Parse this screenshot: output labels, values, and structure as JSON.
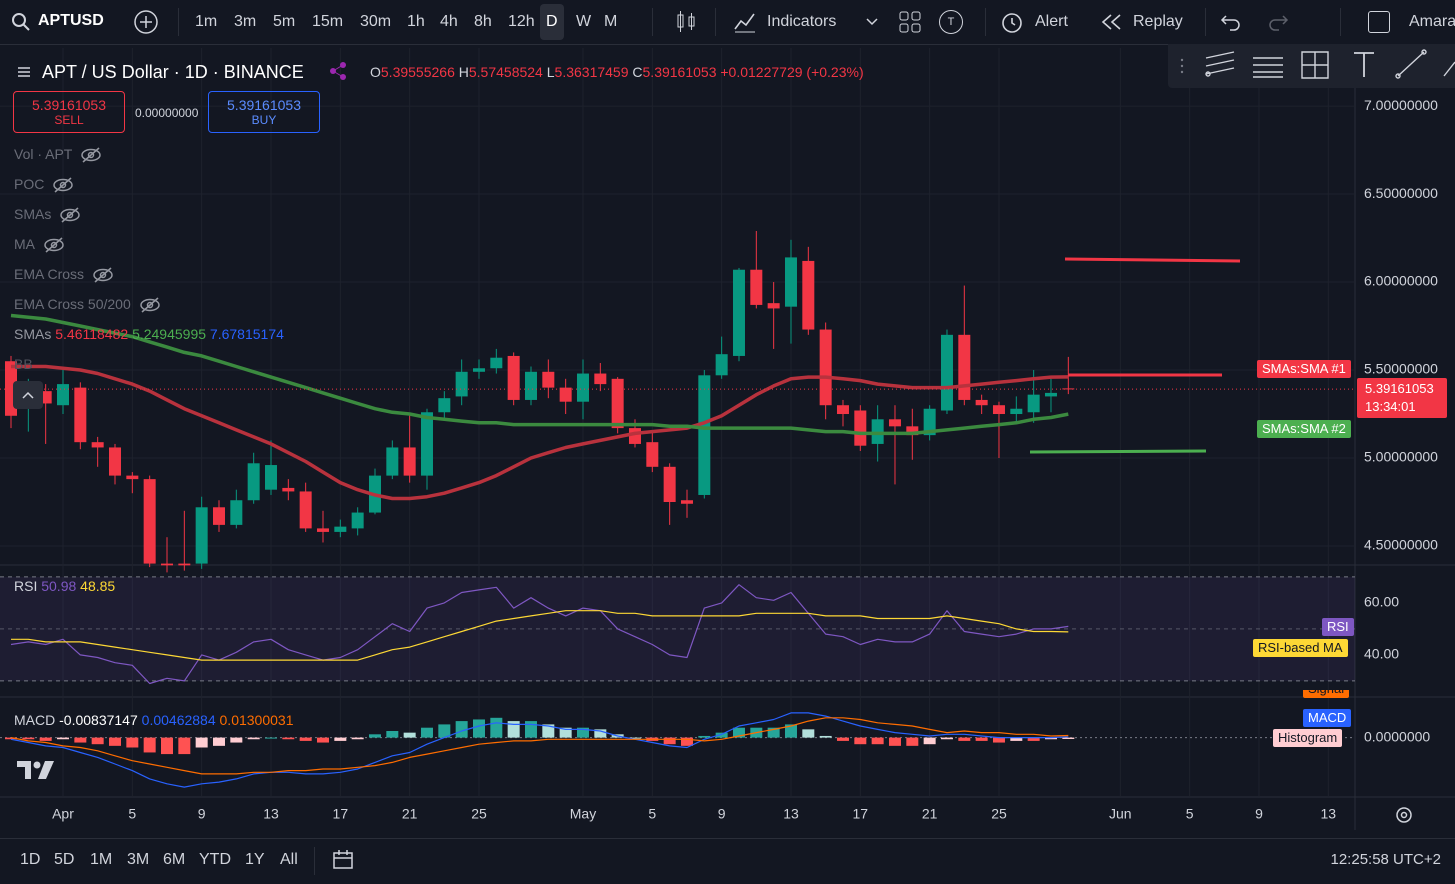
{
  "toolbar": {
    "symbol": "APTUSD",
    "intervals": [
      "1m",
      "3m",
      "5m",
      "15m",
      "30m",
      "1h",
      "4h",
      "8h",
      "12h",
      "D",
      "W",
      "M"
    ],
    "indicators": "Indicators",
    "template": "T",
    "alert": "Alert",
    "replay": "Replay",
    "user": "Amara"
  },
  "header": {
    "title": "APT / US Dollar · 1D · BINANCE",
    "ohlc_labels": [
      "O",
      "H",
      "L",
      "C"
    ],
    "change": "+0.01227729 (+0.23%)"
  },
  "trade": {
    "sell": "SELL",
    "spread": "0.00000000",
    "buy": "BUY"
  },
  "indicator_list": [
    "Vol · APT",
    "POC",
    "SMAs",
    "MA",
    "EMA Cross",
    "EMA Cross 50/200"
  ],
  "sma_legend": {
    "label": "SMAs",
    "third": "7.67815174"
  },
  "bb": "BB",
  "countdown": "13:34:01",
  "bottom": {
    "ranges": [
      "1D",
      "5D",
      "1M",
      "3M",
      "6M",
      "YTD",
      "1Y",
      "All"
    ],
    "clock": "12:25:58 UTC+2"
  },
  "chart_data": [
    {
      "type": "candlestick",
      "x": [
        "Mar 29",
        "Mar 30",
        "Mar 31",
        "Apr 1",
        "Apr 2",
        "Apr 3",
        "Apr 4",
        "Apr 5",
        "Apr 6",
        "Apr 7",
        "Apr 8",
        "Apr 9",
        "Apr 10",
        "Apr 11",
        "Apr 12",
        "Apr 13",
        "Apr 14",
        "Apr 15",
        "Apr 16",
        "Apr 17",
        "Apr 18",
        "Apr 19",
        "Apr 20",
        "Apr 21",
        "Apr 22",
        "Apr 23",
        "Apr 24",
        "Apr 25",
        "Apr 26",
        "Apr 27",
        "Apr 28",
        "Apr 29",
        "Apr 30",
        "May 1",
        "May 2",
        "May 3",
        "May 4",
        "May 5",
        "May 6",
        "May 7",
        "May 8",
        "May 9",
        "May 10",
        "May 11",
        "May 12",
        "May 13",
        "May 14",
        "May 15",
        "May 16",
        "May 17",
        "May 18",
        "May 19",
        "May 20",
        "May 21",
        "May 22",
        "May 23",
        "May 24",
        "May 25",
        "May 26",
        "May 27",
        "May 28",
        "May 29",
        "May 30",
        "May 31",
        "Jun 1",
        "Jun 2",
        "Jun 3",
        "Jun 4",
        "Jun 5",
        "Jun 6",
        "Jun 7",
        "Jun 8",
        "Jun 9",
        "Jun 10",
        "Jun 11",
        "Jun 12",
        "Jun 13"
      ],
      "open": [
        5.55,
        5.3,
        5.38,
        5.3,
        5.4,
        5.09,
        5.06,
        4.9,
        4.88,
        4.4,
        4.4,
        4.4,
        4.72,
        4.62,
        4.76,
        4.82,
        4.83,
        4.81,
        4.6,
        4.58,
        4.6,
        4.69,
        4.9,
        5.06,
        4.9,
        5.26,
        5.35,
        5.49,
        5.51,
        5.58,
        5.33,
        5.49,
        5.4,
        5.32,
        5.48,
        5.45,
        5.17,
        5.09,
        4.95,
        4.76,
        4.79,
        5.47,
        5.58,
        6.07,
        5.88,
        5.86,
        6.12,
        5.73,
        5.3,
        5.27,
        5.08,
        5.22,
        5.18,
        5.13,
        5.27,
        5.7,
        5.33,
        5.3,
        5.25,
        5.26,
        5.35,
        5.39555266,
        null,
        null,
        null,
        null,
        null,
        null,
        null,
        null,
        null,
        null,
        null,
        null,
        null,
        null,
        null
      ],
      "high": [
        5.58,
        5.45,
        5.42,
        5.5,
        5.43,
        5.12,
        5.08,
        4.92,
        4.9,
        4.55,
        4.7,
        4.78,
        4.76,
        4.82,
        5.03,
        5.1,
        4.88,
        4.86,
        4.7,
        4.65,
        4.72,
        4.94,
        5.1,
        5.25,
        5.28,
        5.38,
        5.56,
        5.56,
        5.62,
        5.6,
        5.52,
        5.56,
        5.45,
        5.56,
        5.54,
        5.46,
        5.22,
        5.15,
        4.97,
        4.82,
        5.5,
        5.69,
        6.08,
        6.29,
        6.0,
        6.24,
        6.2,
        5.77,
        5.33,
        5.3,
        5.3,
        5.3,
        5.28,
        5.3,
        5.73,
        5.98,
        5.36,
        5.32,
        5.35,
        5.5,
        5.45,
        5.57458524,
        null,
        null,
        null,
        null,
        null,
        null,
        null,
        null,
        null,
        null,
        null,
        null,
        null,
        null,
        null
      ],
      "low": [
        5.17,
        5.15,
        5.08,
        5.25,
        5.05,
        4.95,
        4.85,
        4.8,
        4.38,
        4.35,
        4.36,
        4.37,
        4.58,
        4.6,
        4.74,
        4.79,
        4.76,
        4.58,
        4.52,
        4.55,
        4.56,
        4.68,
        4.88,
        4.86,
        4.82,
        5.22,
        5.3,
        5.45,
        5.48,
        5.3,
        5.3,
        5.34,
        5.25,
        5.22,
        5.38,
        5.14,
        5.06,
        4.92,
        4.62,
        4.66,
        4.77,
        5.45,
        5.55,
        5.85,
        5.62,
        5.65,
        5.7,
        5.22,
        5.18,
        5.04,
        4.98,
        4.85,
        4.99,
        5.1,
        5.25,
        5.3,
        5.25,
        5.0,
        5.2,
        5.2,
        5.26,
        5.36317459,
        null,
        null,
        null,
        null,
        null,
        null,
        null,
        null,
        null,
        null,
        null,
        null,
        null,
        null,
        null
      ],
      "close": [
        5.24,
        5.38,
        5.31,
        5.42,
        5.09,
        5.06,
        4.9,
        4.88,
        4.4,
        4.39,
        4.39,
        4.72,
        4.62,
        4.76,
        4.97,
        4.96,
        4.81,
        4.6,
        4.58,
        4.61,
        4.69,
        4.9,
        5.06,
        4.9,
        5.26,
        5.34,
        5.49,
        5.51,
        5.57,
        5.33,
        5.49,
        5.4,
        5.32,
        5.48,
        5.42,
        5.17,
        5.08,
        4.95,
        4.75,
        4.74,
        5.47,
        5.59,
        6.07,
        5.87,
        5.85,
        6.14,
        5.73,
        5.3,
        5.25,
        5.07,
        5.22,
        5.18,
        5.13,
        5.28,
        5.7,
        5.33,
        5.3,
        5.25,
        5.28,
        5.36,
        5.37,
        5.39161053,
        null,
        null,
        null,
        null,
        null,
        null,
        null,
        null,
        null,
        null,
        null,
        null,
        null,
        null,
        null
      ],
      "up_color": "#089981",
      "down_color": "#f23645",
      "series": [
        {
          "name": "SMAs:SMA #1",
          "color": "#b8323d",
          "values": [
            5.52,
            5.52,
            5.52,
            5.51,
            5.5,
            5.48,
            5.45,
            5.42,
            5.38,
            5.33,
            5.28,
            5.24,
            5.2,
            5.16,
            5.12,
            5.08,
            5.03,
            4.98,
            4.92,
            4.86,
            4.82,
            4.79,
            4.77,
            4.77,
            4.78,
            4.8,
            4.83,
            4.86,
            4.9,
            4.95,
            5.0,
            5.03,
            5.06,
            5.08,
            5.1,
            5.12,
            5.14,
            5.15,
            5.16,
            5.17,
            5.2,
            5.24,
            5.3,
            5.36,
            5.41,
            5.45,
            5.46,
            5.46,
            5.45,
            5.44,
            5.42,
            5.41,
            5.4,
            5.4,
            5.4,
            5.41,
            5.42,
            5.43,
            5.44,
            5.45,
            5.46,
            5.46118482,
            null,
            null,
            null,
            null,
            null,
            null,
            null,
            null,
            null,
            null,
            null,
            null,
            null,
            null,
            null
          ]
        },
        {
          "name": "SMAs:SMA #2",
          "color": "#3b8a3f",
          "values": [
            5.81,
            5.8,
            5.79,
            5.77,
            5.75,
            5.73,
            5.71,
            5.69,
            5.66,
            5.63,
            5.6,
            5.58,
            5.55,
            5.52,
            5.49,
            5.46,
            5.43,
            5.4,
            5.37,
            5.34,
            5.31,
            5.28,
            5.26,
            5.25,
            5.23,
            5.22,
            5.21,
            5.2,
            5.2,
            5.19,
            5.19,
            5.19,
            5.19,
            5.19,
            5.19,
            5.19,
            5.19,
            5.19,
            5.18,
            5.18,
            5.17,
            5.17,
            5.17,
            5.17,
            5.17,
            5.17,
            5.16,
            5.15,
            5.15,
            5.14,
            5.14,
            5.14,
            5.14,
            5.15,
            5.16,
            5.17,
            5.18,
            5.19,
            5.2,
            5.22,
            5.23,
            5.24945995,
            null,
            null,
            null,
            null,
            null,
            null,
            null,
            null,
            null,
            null,
            null,
            null,
            null,
            null,
            null
          ]
        }
      ],
      "ylim": [
        4.392,
        7.33
      ],
      "yticks": [
        {
          "value": 4.5,
          "label": "4.50000000"
        },
        {
          "value": 5,
          "label": "5.00000000"
        },
        {
          "value": 5.5,
          "label": "5.50000000"
        },
        {
          "value": 6,
          "label": "6.00000000"
        },
        {
          "value": 6.5,
          "label": "6.50000000"
        },
        {
          "value": 7,
          "label": "7.00000000"
        }
      ],
      "xticks": [
        {
          "value": "Apr 1",
          "label": "Apr"
        },
        {
          "value": "Apr 5",
          "label": "5"
        },
        {
          "value": "Apr 9",
          "label": "9"
        },
        {
          "value": "Apr 13",
          "label": "13"
        },
        {
          "value": "Apr 17",
          "label": "17"
        },
        {
          "value": "Apr 21",
          "label": "21"
        },
        {
          "value": "Apr 25",
          "label": "25"
        },
        {
          "value": "May 1",
          "label": "May"
        },
        {
          "value": "May 5",
          "label": "5"
        },
        {
          "value": "May 9",
          "label": "9"
        },
        {
          "value": "May 13",
          "label": "13"
        },
        {
          "value": "May 17",
          "label": "17"
        },
        {
          "value": "May 21",
          "label": "21"
        },
        {
          "value": "May 25",
          "label": "25"
        },
        {
          "value": "Jun 1",
          "label": "Jun"
        },
        {
          "value": "Jun 5",
          "label": "5"
        },
        {
          "value": "Jun 9",
          "label": "9"
        },
        {
          "value": "Jun 13",
          "label": "13"
        }
      ],
      "grid": true
    },
    {
      "type": "line",
      "title": "RSI",
      "series": [
        {
          "name": "RSI",
          "color": "#7e57c2",
          "values": [
            44,
            45,
            44,
            46,
            40,
            39,
            37,
            36,
            29,
            31,
            30,
            40,
            38,
            41,
            45,
            46,
            42,
            40,
            38,
            39,
            42,
            47,
            52,
            49,
            58,
            60,
            64,
            65,
            66,
            58,
            62,
            58,
            55,
            58,
            57,
            50,
            47,
            44,
            40,
            39,
            58,
            60,
            67,
            62,
            61,
            64,
            56,
            48,
            47,
            44,
            46,
            45,
            45,
            48,
            57,
            49,
            48,
            47,
            48,
            50,
            50,
            50.98,
            null,
            null,
            null,
            null,
            null,
            null,
            null,
            null,
            null,
            null,
            null,
            null,
            null,
            null,
            null
          ]
        },
        {
          "name": "RSI-based MA",
          "color": "#fdd835",
          "values": [
            46,
            46,
            45,
            45,
            45,
            44,
            43,
            42,
            41,
            40,
            39,
            38,
            38,
            38,
            38,
            38,
            38,
            38,
            38,
            38,
            38,
            40,
            42,
            43,
            45,
            47,
            49,
            51,
            53,
            54,
            55,
            56,
            57,
            57,
            57,
            56,
            56,
            55,
            55,
            55,
            55,
            55,
            55,
            56,
            56,
            56,
            56,
            55,
            55,
            55,
            54,
            54,
            54,
            54,
            55,
            54,
            53,
            52,
            50,
            49,
            49,
            48.85,
            null,
            null,
            null,
            null,
            null,
            null,
            null,
            null,
            null,
            null,
            null,
            null,
            null,
            null,
            null
          ]
        }
      ],
      "ylim": [
        23.8,
        74.2
      ],
      "yticks": [
        {
          "value": 60,
          "label": "60.00"
        },
        {
          "value": 40,
          "label": "40.00"
        }
      ],
      "hlines": [
        70,
        50,
        30
      ]
    },
    {
      "type": "line",
      "title": "MACD",
      "series": [
        {
          "name": "Histogram",
          "type": "bar",
          "colors": [
            "#26a69a",
            "#b2dfdb",
            "#ff5252",
            "#ffcdd2"
          ],
          "values": [
            -0.01,
            -0.01,
            -0.02,
            -0.01,
            -0.03,
            -0.04,
            -0.05,
            -0.06,
            -0.09,
            -0.1,
            -0.1,
            -0.06,
            -0.05,
            -0.03,
            -0.01,
            0.0,
            -0.01,
            -0.02,
            -0.03,
            -0.02,
            -0.01,
            0.02,
            0.04,
            0.03,
            0.06,
            0.08,
            0.1,
            0.11,
            0.12,
            0.1,
            0.1,
            0.08,
            0.06,
            0.06,
            0.05,
            0.02,
            0.0,
            -0.02,
            -0.04,
            -0.05,
            0.01,
            0.03,
            0.06,
            0.06,
            0.06,
            0.08,
            0.05,
            0.01,
            -0.02,
            -0.04,
            -0.04,
            -0.05,
            -0.05,
            -0.04,
            -0.01,
            -0.02,
            -0.02,
            -0.03,
            -0.02,
            -0.02,
            -0.01,
            -0.00837147,
            null,
            null,
            null,
            null,
            null,
            null,
            null,
            null,
            null,
            null,
            null,
            null,
            null,
            null,
            null
          ]
        },
        {
          "name": "MACD",
          "color": "#2962ff",
          "values": [
            -0.01,
            -0.03,
            -0.05,
            -0.06,
            -0.09,
            -0.12,
            -0.16,
            -0.2,
            -0.25,
            -0.28,
            -0.3,
            -0.28,
            -0.27,
            -0.25,
            -0.22,
            -0.21,
            -0.21,
            -0.22,
            -0.22,
            -0.21,
            -0.19,
            -0.15,
            -0.11,
            -0.09,
            -0.04,
            0.0,
            0.04,
            0.07,
            0.09,
            0.08,
            0.08,
            0.07,
            0.05,
            0.05,
            0.04,
            0.01,
            -0.01,
            -0.03,
            -0.05,
            -0.06,
            -0.01,
            0.02,
            0.07,
            0.09,
            0.11,
            0.15,
            0.15,
            0.13,
            0.1,
            0.07,
            0.05,
            0.03,
            0.02,
            0.01,
            0.02,
            0.02,
            0.01,
            0.0,
            0.0,
            0.0,
            0.0,
            0.00462884,
            null,
            null,
            null,
            null,
            null,
            null,
            null,
            null,
            null,
            null,
            null,
            null,
            null,
            null,
            null
          ]
        },
        {
          "name": "Signal",
          "color": "#ff6d00",
          "values": [
            0.0,
            -0.02,
            -0.03,
            -0.05,
            -0.06,
            -0.08,
            -0.11,
            -0.14,
            -0.16,
            -0.18,
            -0.2,
            -0.22,
            -0.22,
            -0.22,
            -0.21,
            -0.21,
            -0.2,
            -0.2,
            -0.19,
            -0.19,
            -0.18,
            -0.17,
            -0.15,
            -0.12,
            -0.1,
            -0.08,
            -0.06,
            -0.04,
            -0.03,
            -0.02,
            -0.02,
            -0.01,
            -0.01,
            -0.01,
            -0.01,
            -0.01,
            -0.01,
            -0.01,
            -0.01,
            -0.01,
            -0.02,
            -0.01,
            0.01,
            0.03,
            0.05,
            0.07,
            0.1,
            0.12,
            0.12,
            0.11,
            0.09,
            0.08,
            0.07,
            0.05,
            0.03,
            0.04,
            0.03,
            0.03,
            0.02,
            0.02,
            0.01,
            0.01300031,
            null,
            null,
            null,
            null,
            null,
            null,
            null,
            null,
            null,
            null,
            null,
            null,
            null,
            null,
            null
          ]
        }
      ],
      "ylim": [
        -0.36,
        0.24
      ],
      "yticks": [
        {
          "value": 0,
          "label": "0.0000000"
        }
      ]
    }
  ]
}
